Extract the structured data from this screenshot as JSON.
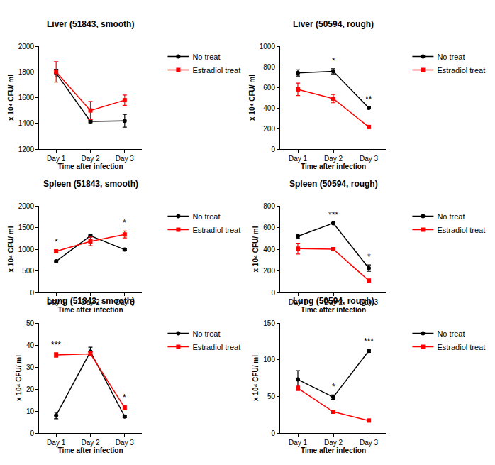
{
  "chart_data": [
    {
      "type": "line",
      "title": "Liver (51843, smooth)",
      "x_label": "Time after infection",
      "y_label": "x 10⁴ CFU/ ml",
      "categories": [
        "Day 1",
        "Day 2",
        "Day 3"
      ],
      "series": [
        {
          "name": "No treat",
          "color": "#000000",
          "marker": "circle",
          "line_style": "solid",
          "values": [
            1790,
            1415,
            1420
          ],
          "errors": [
            30,
            10,
            50
          ]
        },
        {
          "name": "Estradiol treat",
          "color": "#ff0000",
          "marker": "square",
          "line_style": "solid",
          "values": [
            1800,
            1500,
            1580
          ],
          "errors": [
            80,
            70,
            40
          ]
        }
      ],
      "ylim": [
        1200,
        2000
      ],
      "yticks": [
        1200,
        1400,
        1600,
        1800,
        2000
      ],
      "grid": false,
      "legend": "right",
      "annotations": []
    },
    {
      "type": "line",
      "title": "Liver (50594, rough)",
      "x_label": "Time after infection",
      "y_label": "x 10⁴ CFU/ ml",
      "categories": [
        "Day 1",
        "Day 2",
        "Day 3"
      ],
      "series": [
        {
          "name": "No treat",
          "color": "#000000",
          "marker": "circle",
          "line_style": "solid",
          "values": [
            740,
            755,
            400
          ],
          "errors": [
            30,
            25,
            10
          ]
        },
        {
          "name": "Estradiol treat",
          "color": "#ff0000",
          "marker": "square",
          "line_style": "solid",
          "values": [
            580,
            490,
            215
          ],
          "errors": [
            60,
            40,
            15
          ]
        }
      ],
      "ylim": [
        0,
        1000
      ],
      "yticks": [
        0,
        200,
        400,
        600,
        800,
        1000
      ],
      "grid": false,
      "legend": "right",
      "annotations": [
        {
          "category": "Day 2",
          "text": "*"
        },
        {
          "category": "Day 3",
          "text": "**"
        }
      ]
    },
    {
      "type": "line",
      "title": "Spleen (51843, smooth)",
      "x_label": "Time after infection",
      "y_label": "x 10⁴ CFU/ ml",
      "categories": [
        "Day 1",
        "Day 2",
        "Day 3"
      ],
      "series": [
        {
          "name": "No treat",
          "color": "#000000",
          "marker": "circle",
          "line_style": "solid",
          "values": [
            720,
            1310,
            990
          ],
          "errors": [
            15,
            20,
            15
          ]
        },
        {
          "name": "Estradiol treat",
          "color": "#ff0000",
          "marker": "square",
          "line_style": "solid",
          "values": [
            950,
            1180,
            1340
          ],
          "errors": [
            30,
            100,
            80
          ]
        }
      ],
      "ylim": [
        0,
        2000
      ],
      "yticks": [
        0,
        500,
        1000,
        1500,
        2000
      ],
      "grid": false,
      "legend": "right",
      "annotations": [
        {
          "category": "Day 1",
          "text": "*"
        },
        {
          "category": "Day 3",
          "text": "*"
        }
      ]
    },
    {
      "type": "line",
      "title": "Spleen (50594, rough)",
      "x_label": "Time after infection",
      "y_label": "x 10⁴ CFU/ ml",
      "categories": [
        "Day 1",
        "Day 2",
        "Day 3"
      ],
      "series": [
        {
          "name": "No treat",
          "color": "#000000",
          "marker": "circle",
          "line_style": "solid",
          "values": [
            520,
            640,
            225
          ],
          "errors": [
            20,
            5,
            30
          ]
        },
        {
          "name": "Estradiol treat",
          "color": "#ff0000",
          "marker": "square",
          "line_style": "solid",
          "values": [
            405,
            400,
            110
          ],
          "errors": [
            50,
            5,
            10
          ]
        }
      ],
      "ylim": [
        0,
        800
      ],
      "yticks": [
        0,
        200,
        400,
        600,
        800
      ],
      "grid": false,
      "legend": "right",
      "annotations": [
        {
          "category": "Day 2",
          "text": "***"
        },
        {
          "category": "Day 3",
          "text": "*"
        }
      ]
    },
    {
      "type": "line",
      "title": "Lung (51843, smooth)",
      "x_label": "Time after infection",
      "y_label": "x 10⁴ CFU/ ml",
      "categories": [
        "Day 1",
        "Day 2",
        "Day 3"
      ],
      "series": [
        {
          "name": "No treat",
          "color": "#000000",
          "marker": "circle",
          "line_style": "solid",
          "values": [
            8,
            37,
            7.5
          ],
          "errors": [
            1.5,
            2,
            0.5
          ]
        },
        {
          "name": "Estradiol treat",
          "color": "#ff0000",
          "marker": "square",
          "line_style": "solid",
          "values": [
            35.5,
            36,
            11.5
          ],
          "errors": [
            1,
            1,
            1
          ]
        }
      ],
      "ylim": [
        0,
        50
      ],
      "yticks": [
        0,
        10,
        20,
        30,
        40,
        50
      ],
      "grid": false,
      "legend": "right",
      "annotations": [
        {
          "category": "Day 1",
          "text": "***"
        },
        {
          "category": "Day 3",
          "text": "*"
        }
      ]
    },
    {
      "type": "line",
      "title": "Lung (50594, rough)",
      "x_label": "Time after infection",
      "y_label": "x 10⁴ CFU/ ml",
      "categories": [
        "Day 1",
        "Day 2",
        "Day 3"
      ],
      "series": [
        {
          "name": "No treat",
          "color": "#000000",
          "marker": "circle",
          "line_style": "solid",
          "values": [
            73,
            49,
            112
          ],
          "errors": [
            12,
            3,
            2
          ]
        },
        {
          "name": "Estradiol treat",
          "color": "#ff0000",
          "marker": "square",
          "line_style": "solid",
          "values": [
            61,
            29,
            17
          ],
          "errors": [
            3,
            2,
            2
          ]
        }
      ],
      "ylim": [
        0,
        150
      ],
      "yticks": [
        0,
        50,
        100,
        150
      ],
      "grid": false,
      "legend": "right",
      "annotations": [
        {
          "category": "Day 2",
          "text": "*"
        },
        {
          "category": "Day 3",
          "text": "***"
        }
      ]
    }
  ]
}
